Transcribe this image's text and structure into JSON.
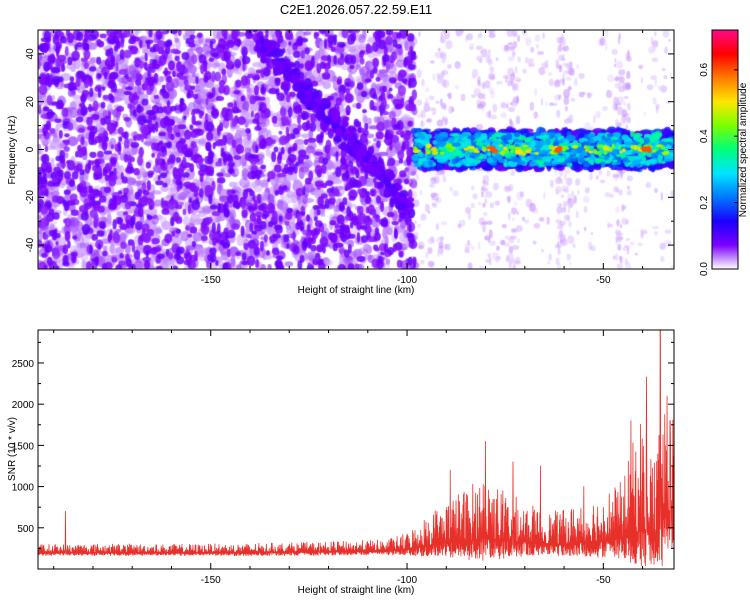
{
  "title": "C2E1.2026.057.22.59.E11",
  "chart_data": [
    {
      "type": "heatmap",
      "xlabel": "Height of straight line (km)",
      "ylabel": "Frequency (Hz)",
      "colorbar_label": "Normalized spectral amplitude",
      "x_range": [
        -194,
        -32
      ],
      "y_range": [
        -50,
        50
      ],
      "x_ticks": [
        -150,
        -100,
        -50
      ],
      "y_ticks": [
        -40,
        -20,
        0,
        20,
        40
      ],
      "colorbar_range": [
        0,
        0.72
      ],
      "colorbar_ticks": [
        0.0,
        0.2,
        0.4,
        0.6
      ],
      "colormap": [
        "#ffffff",
        "#7b00ff",
        "#1a00ff",
        "#0078ff",
        "#00e5ff",
        "#00ff7a",
        "#7aff00",
        "#ffe600",
        "#ff7a00",
        "#ff0000",
        "#ff0a88"
      ],
      "regions": [
        {
          "x": [
            -194,
            -98
          ],
          "y": [
            -50,
            50
          ],
          "amplitude": 0.05
        },
        {
          "x": [
            -98,
            -32
          ],
          "y": [
            -8,
            8
          ],
          "amplitude": 0.35
        },
        {
          "x": [
            -98,
            -32
          ],
          "y": [
            -50,
            50
          ],
          "amplitude": 0.01
        }
      ],
      "peaks": [
        {
          "x": [
            -79,
            -77
          ],
          "y": 0,
          "amplitude": 0.6
        },
        {
          "x": [
            -63,
            -61
          ],
          "y": 0,
          "amplitude": 0.6
        },
        {
          "x": [
            -40,
            -38
          ],
          "y": 0,
          "amplitude": 0.6
        }
      ],
      "diagonal_feature": {
        "from": [
          -140,
          50
        ],
        "to": [
          -99,
          -25
        ]
      }
    },
    {
      "type": "line",
      "xlabel": "Height of straight line (km)",
      "ylabel": "SNR (10 * v/v)",
      "x_range": [
        -194,
        -32
      ],
      "y_range": [
        0,
        2900
      ],
      "x_ticks": [
        -150,
        -100,
        -50
      ],
      "y_ticks": [
        500,
        1000,
        1500,
        2000,
        2500
      ],
      "color": "#e8302a",
      "envelope": {
        "x": [
          -194,
          -180,
          -160,
          -140,
          -120,
          -105,
          -100,
          -95,
          -90,
          -85,
          -80,
          -75,
          -70,
          -65,
          -60,
          -55,
          -50,
          -45,
          -42,
          -40,
          -37,
          -35,
          -32
        ],
        "baseline": [
          200,
          200,
          200,
          200,
          210,
          220,
          240,
          280,
          330,
          340,
          380,
          340,
          330,
          310,
          300,
          330,
          340,
          380,
          430,
          500,
          380,
          600,
          700
        ],
        "amplitude": [
          100,
          110,
          100,
          110,
          120,
          140,
          200,
          380,
          520,
          650,
          800,
          600,
          500,
          380,
          420,
          500,
          600,
          700,
          1200,
          1500,
          1000,
          1700,
          1200
        ]
      },
      "spikes": [
        {
          "x": -187,
          "y": 700
        },
        {
          "x": -89,
          "y": 1200
        },
        {
          "x": -80,
          "y": 1550
        },
        {
          "x": -73,
          "y": 1300
        },
        {
          "x": -66,
          "y": 1250
        },
        {
          "x": -55,
          "y": 1000
        },
        {
          "x": -43,
          "y": 1800
        },
        {
          "x": -39,
          "y": 2330
        },
        {
          "x": -35.5,
          "y": 2900
        },
        {
          "x": -33,
          "y": 1800
        }
      ]
    }
  ]
}
